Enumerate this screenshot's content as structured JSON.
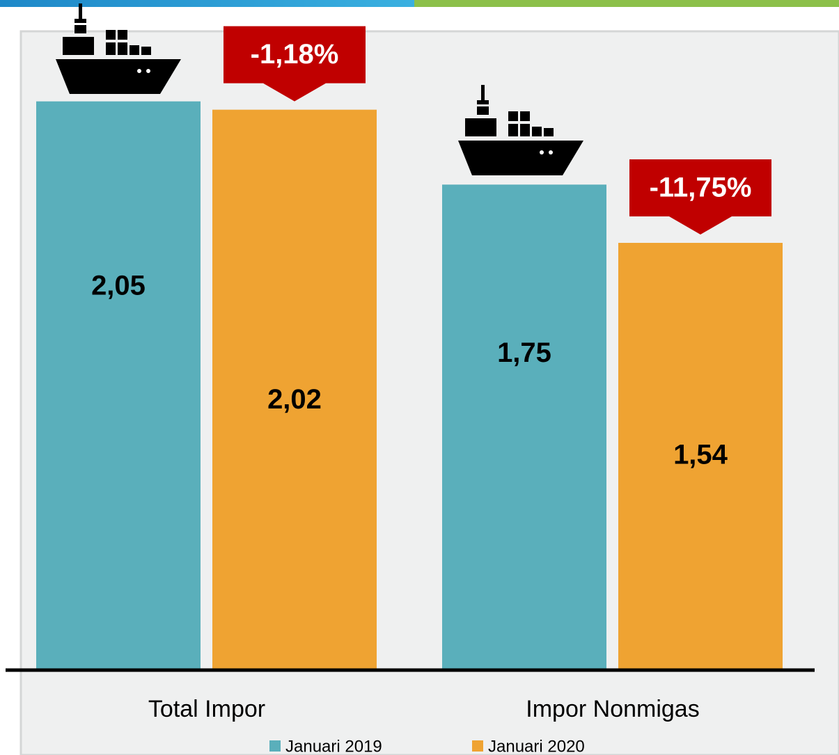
{
  "chart_data": {
    "type": "bar",
    "categories": [
      "Total Impor",
      "Impor Nonmigas"
    ],
    "series": [
      {
        "name": "Januari 2019",
        "color": "#5aafbb",
        "values": [
          2.05,
          1.75
        ],
        "value_labels": [
          "2,05",
          "1,75"
        ]
      },
      {
        "name": "Januari 2020",
        "color": "#efa332",
        "values": [
          2.02,
          1.54
        ],
        "value_labels": [
          "2,02",
          "1,54"
        ]
      }
    ],
    "annotations": [
      "-1,18%",
      "-11,75%"
    ],
    "annotation_color": "#c00000",
    "ylim": [
      0,
      2.3
    ]
  }
}
